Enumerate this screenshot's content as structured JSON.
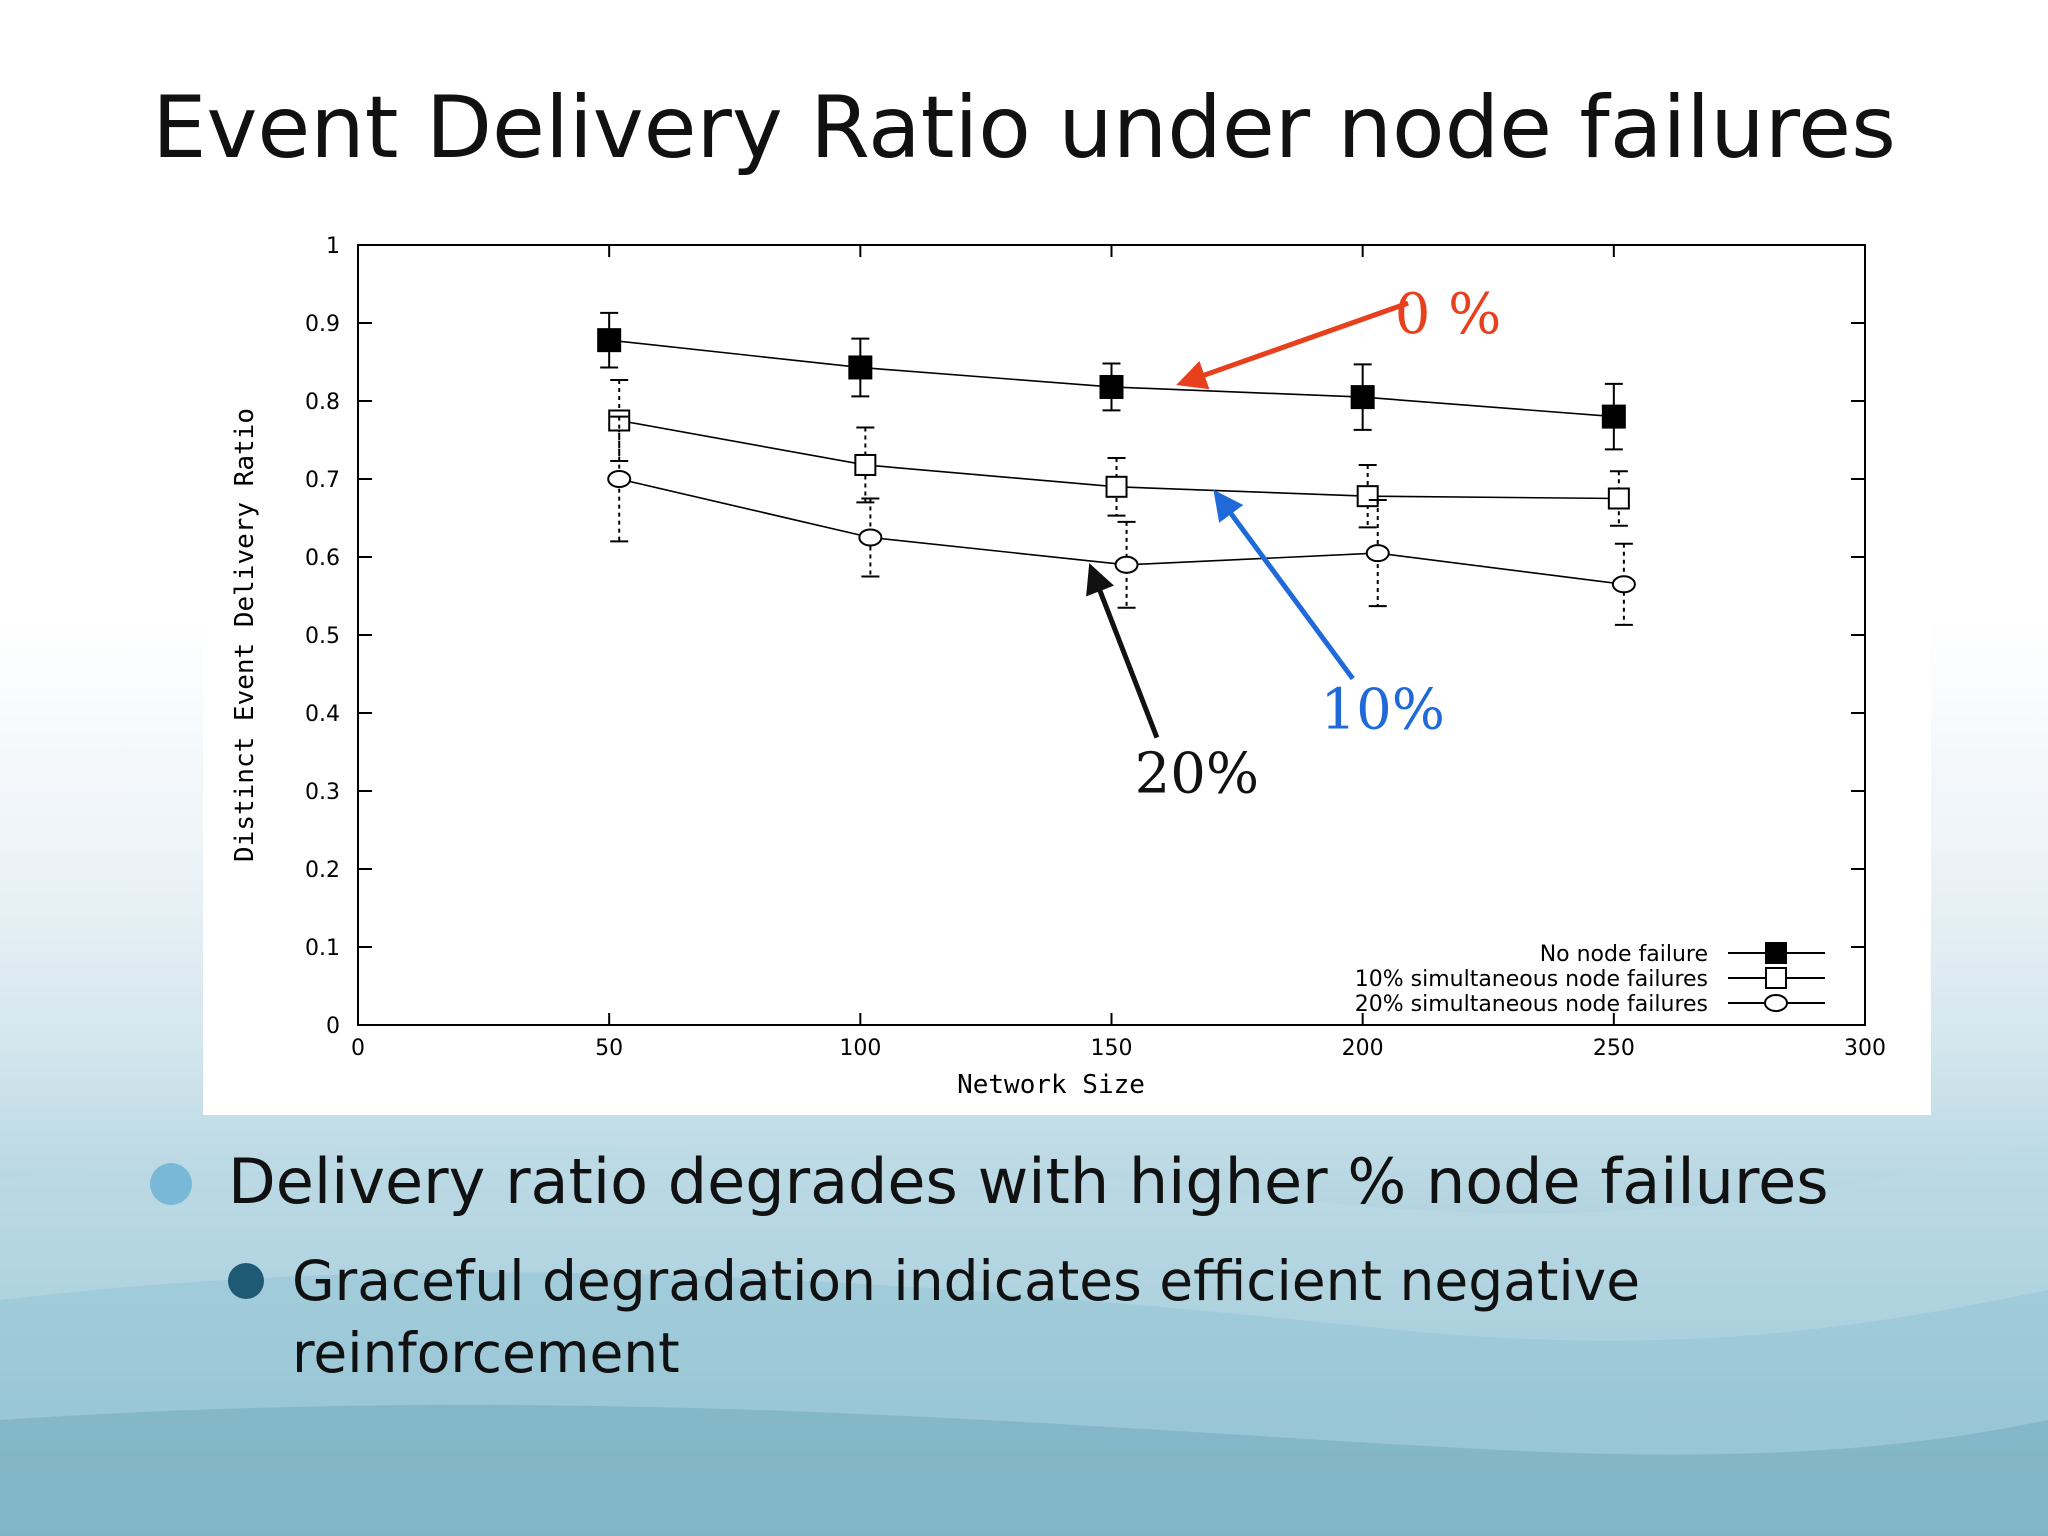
{
  "slide": {
    "title": "Event Delivery Ratio under node failures",
    "bullets": [
      {
        "level": 1,
        "text": "Delivery ratio degrades with higher % node failures"
      },
      {
        "level": 2,
        "text": "Graceful degradation indicates efficient negative reinforcement"
      }
    ]
  },
  "colors": {
    "annotation_0": "#e8401c",
    "annotation_10": "#1f6ad8",
    "annotation_20": "#111111",
    "bullet_level1": "#79b8d6",
    "bullet_level2": "#1e5a74"
  },
  "chart_data": {
    "type": "line",
    "title": "",
    "xlabel": "Network Size",
    "ylabel": "Distinct Event Delivery Ratio",
    "xlim": [
      0,
      300
    ],
    "ylim": [
      0,
      1
    ],
    "xticks": [
      0,
      50,
      100,
      150,
      200,
      250,
      300
    ],
    "yticks": [
      0,
      0.1,
      0.2,
      0.3,
      0.4,
      0.5,
      0.6,
      0.7,
      0.8,
      0.9,
      1
    ],
    "grid": false,
    "legend_position": "bottom-right",
    "series": [
      {
        "name": "No node failure",
        "marker": "filled-square",
        "x": [
          50,
          100,
          150,
          200,
          250
        ],
        "y": [
          0.878,
          0.843,
          0.818,
          0.805,
          0.78
        ],
        "err": [
          0.035,
          0.037,
          0.03,
          0.042,
          0.042
        ]
      },
      {
        "name": "10% simultaneous node failures",
        "marker": "open-square",
        "x": [
          52,
          101,
          151,
          201,
          251
        ],
        "y": [
          0.775,
          0.718,
          0.69,
          0.678,
          0.675
        ],
        "err": [
          0.052,
          0.048,
          0.037,
          0.04,
          0.035
        ]
      },
      {
        "name": "20% simultaneous node failures",
        "marker": "open-circle",
        "x": [
          52,
          102,
          153,
          203,
          252
        ],
        "y": [
          0.7,
          0.625,
          0.59,
          0.605,
          0.565
        ],
        "err": [
          0.08,
          0.05,
          0.055,
          0.068,
          0.052
        ]
      }
    ],
    "annotations": [
      {
        "text": "0 %",
        "label_x": 217,
        "label_y": 0.887,
        "arrow_to_x": 164,
        "arrow_to_y": 0.823,
        "color": "#e8401c"
      },
      {
        "text": "10%",
        "label_x": 204,
        "label_y": 0.38,
        "arrow_to_x": 171,
        "arrow_to_y": 0.68,
        "color": "#1f6ad8"
      },
      {
        "text": "20%",
        "label_x": 167,
        "label_y": 0.298,
        "arrow_to_x": 146,
        "arrow_to_y": 0.585,
        "color": "#111111"
      }
    ]
  }
}
